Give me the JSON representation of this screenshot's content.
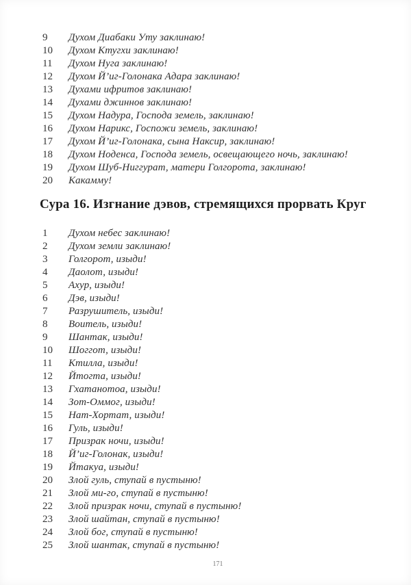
{
  "page_number": "171",
  "verse_list_top": {
    "items": [
      {
        "num": "9",
        "text": "Духом Диабаки Уту заклинаю!"
      },
      {
        "num": "10",
        "text": "Духом Ктугхи заклинаю!"
      },
      {
        "num": "11",
        "text": "Духом Нуга заклинаю!"
      },
      {
        "num": "12",
        "text": "Духом Й’иг-Голонака Адара заклинаю!"
      },
      {
        "num": "13",
        "text": "Духами ифритов заклинаю!"
      },
      {
        "num": "14",
        "text": "Духами джиннов заклинаю!"
      },
      {
        "num": "15",
        "text": "Духом Надура, Господа земель, заклинаю!"
      },
      {
        "num": "16",
        "text": "Духом Нарикс, Госпожи земель, заклинаю!"
      },
      {
        "num": "17",
        "text": "Духом Й’иг-Голонака, сына Наксир, заклинаю!"
      },
      {
        "num": "18",
        "text": "Духом Ноденса, Господа земель, освещающего ночь, заклинаю!"
      },
      {
        "num": "19",
        "text": "Духом Шуб-Ниггурат, матери Голгорота, заклинаю!"
      },
      {
        "num": "20",
        "text": "Какамму!"
      }
    ]
  },
  "section_heading": "Сура 16. Изгнание дэвов, стремящихся прорвать Круг",
  "verse_list_main": {
    "items": [
      {
        "num": "1",
        "text": "Духом небес заклинаю!"
      },
      {
        "num": "2",
        "text": "Духом земли заклинаю!"
      },
      {
        "num": "3",
        "text": "Голгорот, изыди!"
      },
      {
        "num": "4",
        "text": "Даолот, изыди!"
      },
      {
        "num": "5",
        "text": "Ахур, изыди!"
      },
      {
        "num": "6",
        "text": "Дэв, изыди!"
      },
      {
        "num": "7",
        "text": "Разрушитель, изыди!"
      },
      {
        "num": "8",
        "text": "Воитель, изыди!"
      },
      {
        "num": "9",
        "text": "Шантак, изыди!"
      },
      {
        "num": "10",
        "text": "Шоггот, изыди!"
      },
      {
        "num": "11",
        "text": "Ктилла, изыди!"
      },
      {
        "num": "12",
        "text": "Йтогта, изыди!"
      },
      {
        "num": "13",
        "text": "Гхатанотоа, изыди!"
      },
      {
        "num": "14",
        "text": "Зот-Оммог, изыди!"
      },
      {
        "num": "15",
        "text": "Нат-Хортат, изыди!"
      },
      {
        "num": "16",
        "text": "Гуль, изыди!"
      },
      {
        "num": "17",
        "text": "Призрак ночи, изыди!"
      },
      {
        "num": "18",
        "text": "Й’иг-Голонак, изыди!"
      },
      {
        "num": "19",
        "text": "Йтакуа, изыди!"
      },
      {
        "num": "20",
        "text": "Злой гуль, ступай в пустыню!"
      },
      {
        "num": "21",
        "text": "Злой ми-го, ступай в пустыню!"
      },
      {
        "num": "22",
        "text": "Злой призрак ночи, ступай в пустыню!"
      },
      {
        "num": "23",
        "text": "Злой шайтан, ступай в пустыню!"
      },
      {
        "num": "24",
        "text": "Злой бог, ступай в пустыню!"
      },
      {
        "num": "25",
        "text": "Злой шантак, ступай в пустыню!"
      }
    ]
  }
}
